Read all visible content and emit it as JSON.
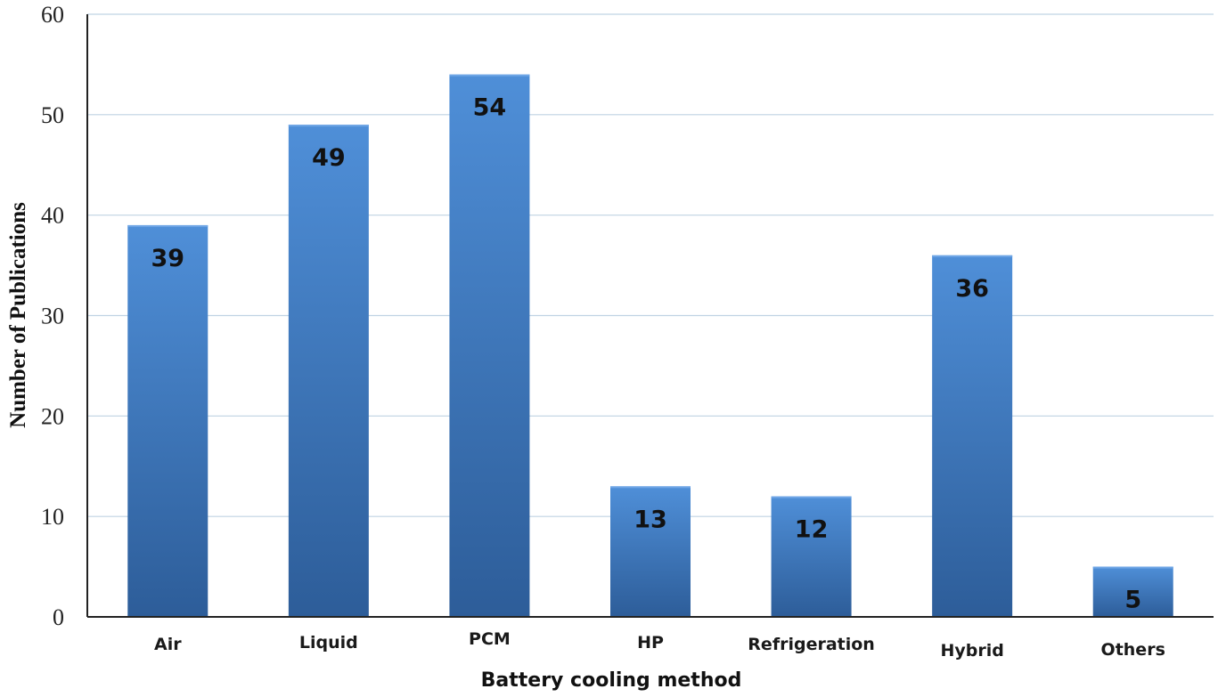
{
  "chart_data": {
    "type": "bar",
    "title": "",
    "xlabel": "Battery cooling method",
    "ylabel": "Number of Publications",
    "categories": [
      "Air",
      "Liquid",
      "PCM",
      "HP",
      "Refrigeration",
      "Hybrid",
      "Others"
    ],
    "values": [
      39,
      49,
      54,
      13,
      12,
      36,
      5
    ],
    "data_labels": [
      "39",
      "49",
      "54",
      "13",
      "12",
      "36",
      "5"
    ],
    "ylim": [
      0,
      60
    ],
    "yticks": [
      0,
      10,
      20,
      30,
      40,
      50,
      60
    ],
    "ytick_labels": [
      "0",
      "10",
      "20",
      "30",
      "40",
      "50",
      "60"
    ],
    "grid": true,
    "legend": "none",
    "colors": {
      "bar_light": "#4f8fd8",
      "bar_dark": "#2d5d99",
      "grid": "#bfd3e3",
      "axis": "#222222"
    }
  }
}
